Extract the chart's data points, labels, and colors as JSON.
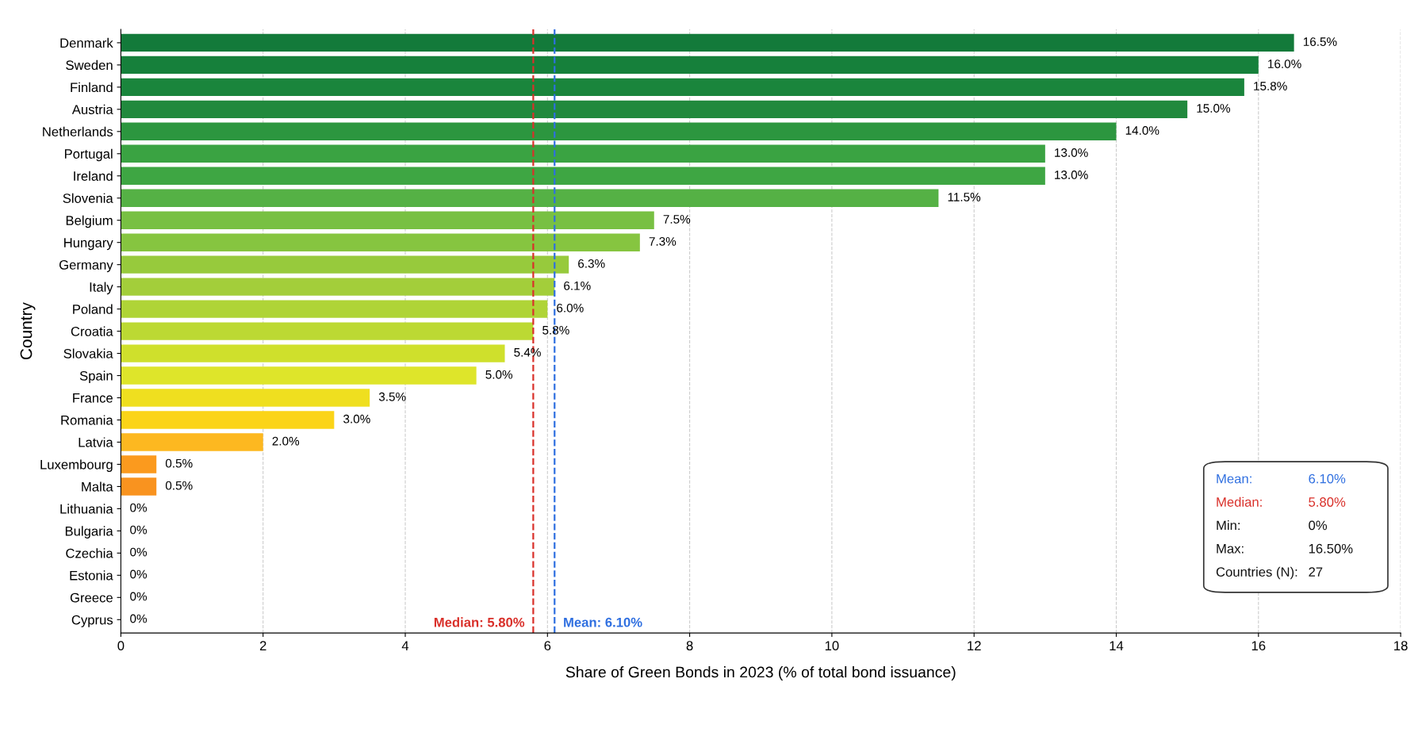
{
  "chart_data": {
    "type": "bar",
    "orientation": "horizontal",
    "xlabel": "Share of Green Bonds in 2023 (% of total bond issuance)",
    "ylabel": "Country",
    "categories": [
      "Denmark",
      "Sweden",
      "Finland",
      "Austria",
      "Netherlands",
      "Portugal",
      "Ireland",
      "Slovenia",
      "Belgium",
      "Hungary",
      "Germany",
      "Italy",
      "Poland",
      "Croatia",
      "Slovakia",
      "Spain",
      "France",
      "Romania",
      "Latvia",
      "Luxembourg",
      "Malta",
      "Lithuania",
      "Bulgaria",
      "Czechia",
      "Estonia",
      "Greece",
      "Cyprus"
    ],
    "values": [
      16.5,
      16.0,
      15.8,
      15.0,
      14.0,
      13.0,
      13.0,
      11.5,
      7.5,
      7.3,
      6.3,
      6.1,
      6.0,
      5.8,
      5.4,
      5.0,
      3.5,
      3.0,
      2.0,
      0.5,
      0.5,
      0,
      0,
      0,
      0,
      0,
      0
    ],
    "value_labels": [
      "16.5%",
      "16.0%",
      "15.8%",
      "15.0%",
      "14.0%",
      "13.0%",
      "13.0%",
      "11.5%",
      "7.5%",
      "7.3%",
      "6.3%",
      "6.1%",
      "6.0%",
      "5.8%",
      "5.4%",
      "5.0%",
      "3.5%",
      "3.0%",
      "2.0%",
      "0.5%",
      "0.5%",
      "0%",
      "0%",
      "0%",
      "0%",
      "0%",
      "0%"
    ],
    "colors": [
      "#137a3a",
      "#16803b",
      "#1a853c",
      "#21893d",
      "#2c963f",
      "#3aa342",
      "#3ea643",
      "#55b145",
      "#78c043",
      "#86c540",
      "#97ca3c",
      "#a3ce3a",
      "#afd437",
      "#bcd933",
      "#cfe02c",
      "#dee52a",
      "#efdf1f",
      "#fbd418",
      "#fdb820",
      "#fb9a1e",
      "#f9931f",
      "#e03a2a",
      "#de382a",
      "#db3529",
      "#d83228",
      "#d53028",
      "#d22e28"
    ],
    "xlim": [
      0,
      18
    ],
    "xticks": [
      0,
      2,
      4,
      6,
      8,
      10,
      12,
      14,
      16,
      18
    ],
    "grid": "x",
    "ref_lines": [
      {
        "axis": "x",
        "value": 6.1,
        "label": "Mean: 6.10%",
        "color": "#2f6fe0",
        "line_style": "dashed"
      },
      {
        "axis": "x",
        "value": 5.8,
        "label": "Median: 5.80%",
        "color": "#d9302a",
        "line_style": "dashed"
      }
    ],
    "annotations": [
      "Mean:",
      "6.10%",
      "Median:",
      "5.80%",
      "Min:",
      "0%",
      "Max:",
      "16.50%",
      "Countries (N):",
      "27"
    ]
  }
}
